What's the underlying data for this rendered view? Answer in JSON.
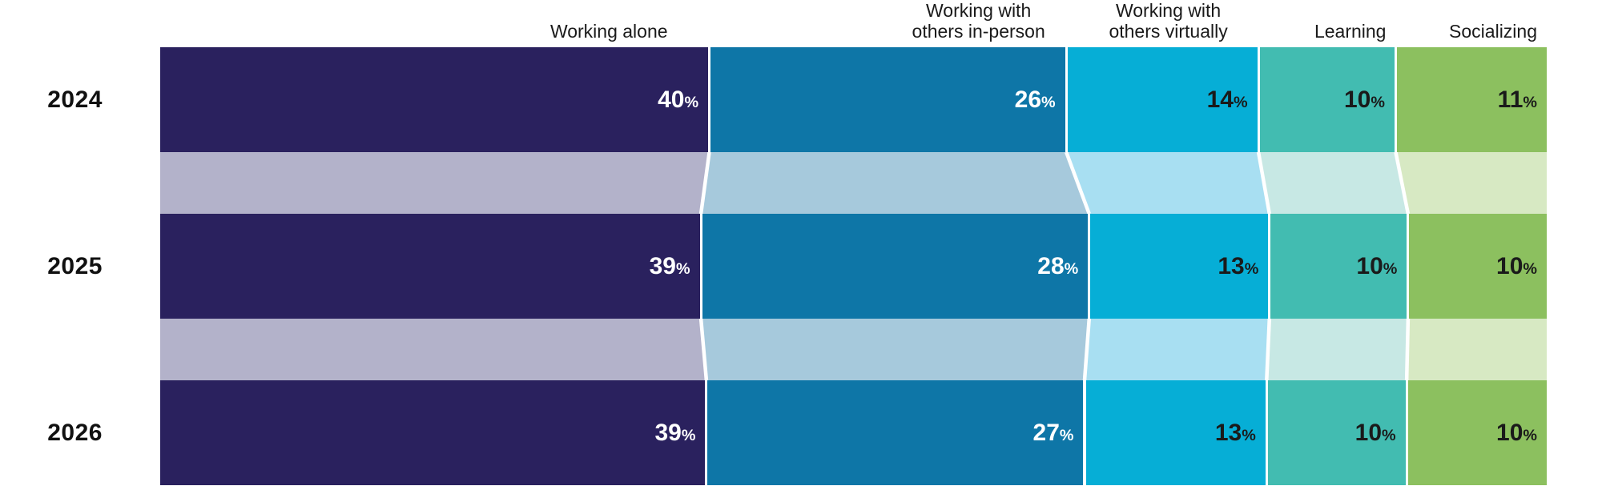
{
  "chart_data": {
    "type": "bar",
    "variant": "horizontal-stacked-flow",
    "unit": "%",
    "legend_position": "top-column-headers",
    "categories": [
      {
        "label": "Working alone",
        "color": "#2a215e",
        "connector_color": "#b3b2ca",
        "label_color": "#ffffff"
      },
      {
        "label": "Working with others in-person",
        "color": "#0e76a7",
        "connector_color": "#a6c9dc",
        "label_color": "#ffffff"
      },
      {
        "label": "Working with others virtually",
        "color": "#06aed6",
        "connector_color": "#a8dff2",
        "label_color": "#1a1a1a"
      },
      {
        "label": "Learning",
        "color": "#42bcb1",
        "connector_color": "#c7e8e4",
        "label_color": "#1a1a1a"
      },
      {
        "label": "Socializing",
        "color": "#8cc05f",
        "connector_color": "#d7e9c3",
        "label_color": "#1a1a1a"
      }
    ],
    "rows": [
      {
        "label": "2024",
        "values": [
          40,
          26,
          14,
          10,
          11
        ]
      },
      {
        "label": "2025",
        "values": [
          39,
          28,
          13,
          10,
          10
        ]
      },
      {
        "label": "2026",
        "values": [
          39,
          27,
          13,
          10,
          10
        ]
      }
    ]
  }
}
